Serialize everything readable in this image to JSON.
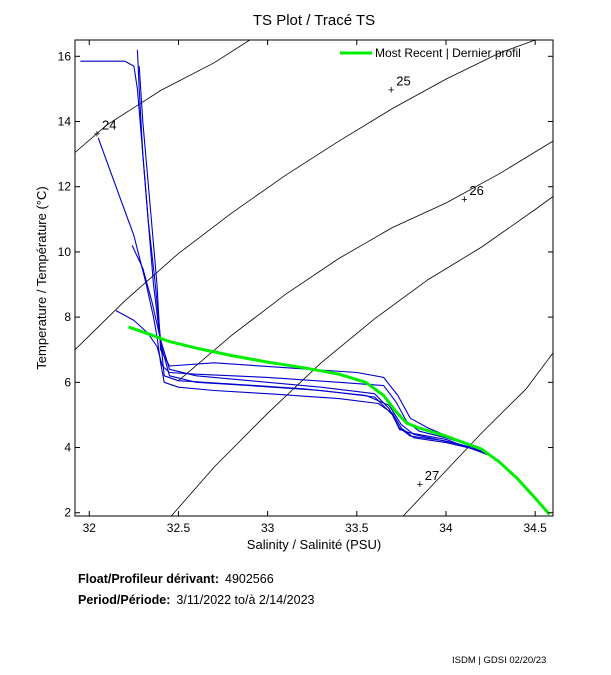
{
  "chart_data": {
    "type": "line",
    "title": "TS Plot / Tracé TS",
    "xlabel": "Salinity / Salinité (PSU)",
    "ylabel": "Temperature / Température (°C)",
    "xlim": [
      31.92,
      34.6
    ],
    "ylim": [
      1.9,
      16.5
    ],
    "xticks": [
      32,
      32.5,
      33,
      33.5,
      34,
      34.5
    ],
    "xtick_labels": [
      "32",
      "32.5",
      "33",
      "33.5",
      "34",
      "34.5"
    ],
    "yticks": [
      2,
      4,
      6,
      8,
      10,
      12,
      14,
      16
    ],
    "ytick_labels": [
      "2",
      "4",
      "6",
      "8",
      "10",
      "12",
      "14",
      "16"
    ],
    "grid": false,
    "legend_position": "top-right",
    "density_contours": [
      {
        "label": "24",
        "label_at": [
          32.06,
          13.6
        ],
        "points": [
          [
            31.92,
            13.05
          ],
          [
            32.1,
            13.9
          ],
          [
            32.4,
            14.95
          ],
          [
            32.7,
            15.8
          ],
          [
            32.9,
            16.5
          ]
        ]
      },
      {
        "label": "25",
        "label_at": [
          33.71,
          14.95
        ],
        "points": [
          [
            31.92,
            7.0
          ],
          [
            32.2,
            8.5
          ],
          [
            32.5,
            9.95
          ],
          [
            32.8,
            11.2
          ],
          [
            33.1,
            12.35
          ],
          [
            33.4,
            13.4
          ],
          [
            33.7,
            14.4
          ],
          [
            34.0,
            15.3
          ],
          [
            34.3,
            16.1
          ],
          [
            34.5,
            16.5
          ]
        ]
      },
      {
        "label": "26",
        "label_at": [
          34.12,
          11.6
        ],
        "points": [
          [
            32.5,
            6.05
          ],
          [
            32.8,
            7.45
          ],
          [
            33.1,
            8.7
          ],
          [
            33.4,
            9.8
          ],
          [
            33.7,
            10.75
          ],
          [
            34.0,
            11.5
          ],
          [
            34.3,
            12.4
          ],
          [
            34.6,
            13.4
          ]
        ]
      },
      {
        "label": "27",
        "label_at": [
          33.87,
          2.85
        ],
        "points": [
          [
            32.46,
            1.9
          ],
          [
            32.7,
            3.4
          ],
          [
            33.0,
            5.05
          ],
          [
            33.3,
            6.6
          ],
          [
            33.6,
            7.95
          ],
          [
            33.9,
            9.15
          ],
          [
            34.2,
            10.15
          ],
          [
            34.5,
            11.3
          ],
          [
            34.6,
            11.7
          ]
        ]
      },
      {
        "label": "",
        "label_at": null,
        "points": [
          [
            33.76,
            1.9
          ],
          [
            33.95,
            3.0
          ],
          [
            34.2,
            4.45
          ],
          [
            34.45,
            5.8
          ],
          [
            34.6,
            6.9
          ]
        ]
      }
    ],
    "series": [
      {
        "name": "Most Recent | Dernier profil",
        "color": "#00ee00",
        "x": [
          32.22,
          32.35,
          32.45,
          32.6,
          32.8,
          33.0,
          33.2,
          33.4,
          33.55,
          33.65,
          33.72,
          33.78,
          33.85,
          34.0,
          34.1,
          34.2,
          34.3,
          34.4,
          34.5,
          34.58
        ],
        "y": [
          7.7,
          7.45,
          7.25,
          7.05,
          6.82,
          6.62,
          6.45,
          6.25,
          6.0,
          5.6,
          5.1,
          4.75,
          4.6,
          4.35,
          4.15,
          3.95,
          3.55,
          3.05,
          2.45,
          1.95
        ]
      },
      {
        "name": "",
        "color": "#0000cc",
        "x": [
          32.27,
          32.28,
          32.3,
          32.33,
          32.36,
          32.4,
          32.45,
          32.6,
          32.9,
          33.3,
          33.6,
          33.7,
          33.74,
          33.8,
          34.0,
          34.1,
          34.25
        ],
        "y": [
          16.2,
          15.0,
          13.0,
          11.0,
          9.0,
          7.2,
          6.2,
          6.0,
          5.9,
          5.75,
          5.55,
          5.0,
          4.55,
          4.45,
          4.25,
          4.05,
          3.75
        ]
      },
      {
        "name": "",
        "color": "#0000cc",
        "x": [
          31.95,
          32.1,
          32.2,
          32.25,
          32.27,
          32.3,
          32.33,
          32.37,
          32.4,
          32.45,
          32.6,
          32.9,
          33.3,
          33.6,
          33.68,
          33.74,
          33.8,
          34.0,
          34.15,
          34.3
        ],
        "y": [
          15.85,
          15.85,
          15.85,
          15.7,
          15.0,
          13.0,
          11.0,
          9.0,
          7.3,
          6.4,
          6.2,
          6.05,
          5.85,
          5.65,
          5.2,
          4.6,
          4.35,
          4.2,
          4.0,
          3.6
        ]
      },
      {
        "name": "",
        "color": "#0000cc",
        "x": [
          32.05,
          32.15,
          32.25,
          32.32,
          32.36,
          32.38,
          32.4,
          32.42,
          32.5,
          32.7,
          33.0,
          33.4,
          33.62,
          33.7,
          33.75,
          33.82,
          34.0,
          34.2
        ],
        "y": [
          13.5,
          12.0,
          10.5,
          9.0,
          8.0,
          7.4,
          6.6,
          6.0,
          5.85,
          5.75,
          5.65,
          5.5,
          5.35,
          5.05,
          4.6,
          4.3,
          4.15,
          3.9
        ]
      },
      {
        "name": "",
        "color": "#0000cc",
        "x": [
          32.15,
          32.25,
          32.33,
          32.38,
          32.41,
          32.45,
          32.6,
          33.0,
          33.4,
          33.65,
          33.72,
          33.78,
          33.85,
          34.0,
          34.15
        ],
        "y": [
          8.2,
          7.9,
          7.5,
          7.1,
          6.5,
          6.3,
          6.25,
          6.15,
          6.0,
          5.9,
          5.4,
          4.8,
          4.5,
          4.3,
          4.05
        ]
      },
      {
        "name": "",
        "color": "#0000cc",
        "x": [
          32.28,
          32.3,
          32.34,
          32.38,
          32.4,
          32.45,
          32.7,
          33.1,
          33.5,
          33.65,
          33.73,
          33.8,
          33.9,
          34.05
        ],
        "y": [
          15.7,
          14.0,
          11.5,
          9.0,
          7.0,
          6.5,
          6.6,
          6.45,
          6.3,
          6.15,
          5.6,
          4.9,
          4.6,
          4.25
        ]
      },
      {
        "name": "",
        "color": "#0000cc",
        "x": [
          32.24,
          32.3,
          32.35,
          32.4,
          32.42,
          32.5,
          32.8,
          33.2,
          33.55,
          33.68,
          33.75,
          33.82,
          33.95,
          34.1
        ],
        "y": [
          10.2,
          9.5,
          8.5,
          7.3,
          6.2,
          6.05,
          5.95,
          5.8,
          5.6,
          5.3,
          4.7,
          4.4,
          4.25,
          4.05
        ]
      }
    ]
  },
  "info": {
    "float_label": "Float/Profileur dérivant:",
    "float_value": "4902566",
    "period_label": "Period/Période:",
    "period_value": "3/11/2022  to/à  2/14/2023"
  },
  "footer": "ISDM | GDSI  02/20/23"
}
